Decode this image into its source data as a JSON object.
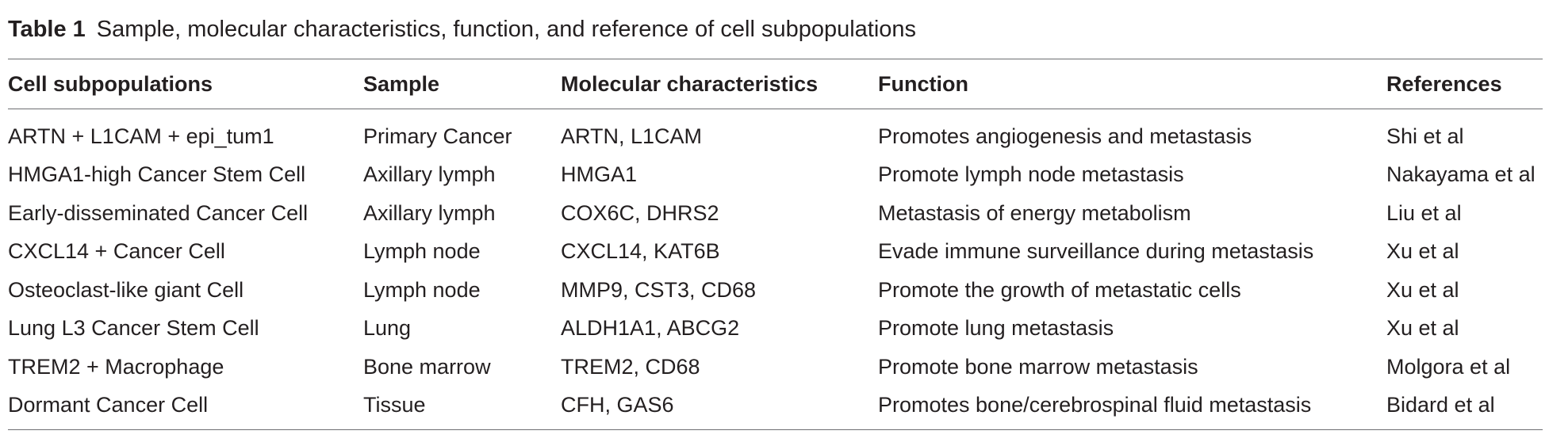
{
  "table": {
    "caption_label": "Table 1",
    "caption_text": "Sample, molecular characteristics, function, and reference of cell subpopulations",
    "headers": [
      "Cell subpopulations",
      "Sample",
      "Molecular characteristics",
      "Function",
      "References"
    ],
    "rows": [
      [
        "ARTN + L1CAM + epi_tum1",
        "Primary Cancer",
        "ARTN, L1CAM",
        "Promotes angiogenesis and metastasis",
        "Shi et al"
      ],
      [
        "HMGA1-high Cancer Stem Cell",
        "Axillary lymph",
        "HMGA1",
        "Promote lymph node metastasis",
        "Nakayama et al"
      ],
      [
        "Early-disseminated Cancer Cell",
        "Axillary lymph",
        "COX6C, DHRS2",
        "Metastasis of energy metabolism",
        "Liu et al"
      ],
      [
        "CXCL14 + Cancer Cell",
        "Lymph node",
        "CXCL14, KAT6B",
        "Evade immune surveillance during metastasis",
        "Xu et al"
      ],
      [
        "Osteoclast-like giant Cell",
        "Lymph node",
        "MMP9, CST3, CD68",
        "Promote the growth of metastatic cells",
        "Xu et al"
      ],
      [
        "Lung L3 Cancer Stem Cell",
        "Lung",
        "ALDH1A1, ABCG2",
        "Promote lung metastasis",
        "Xu et al"
      ],
      [
        "TREM2 + Macrophage",
        "Bone marrow",
        "TREM2, CD68",
        "Promote bone marrow metastasis",
        "Molgora et al"
      ],
      [
        "Dormant Cancer Cell",
        "Tissue",
        "CFH, GAS6",
        "Promotes bone/cerebrospinal fluid metastasis",
        "Bidard et al"
      ]
    ]
  }
}
